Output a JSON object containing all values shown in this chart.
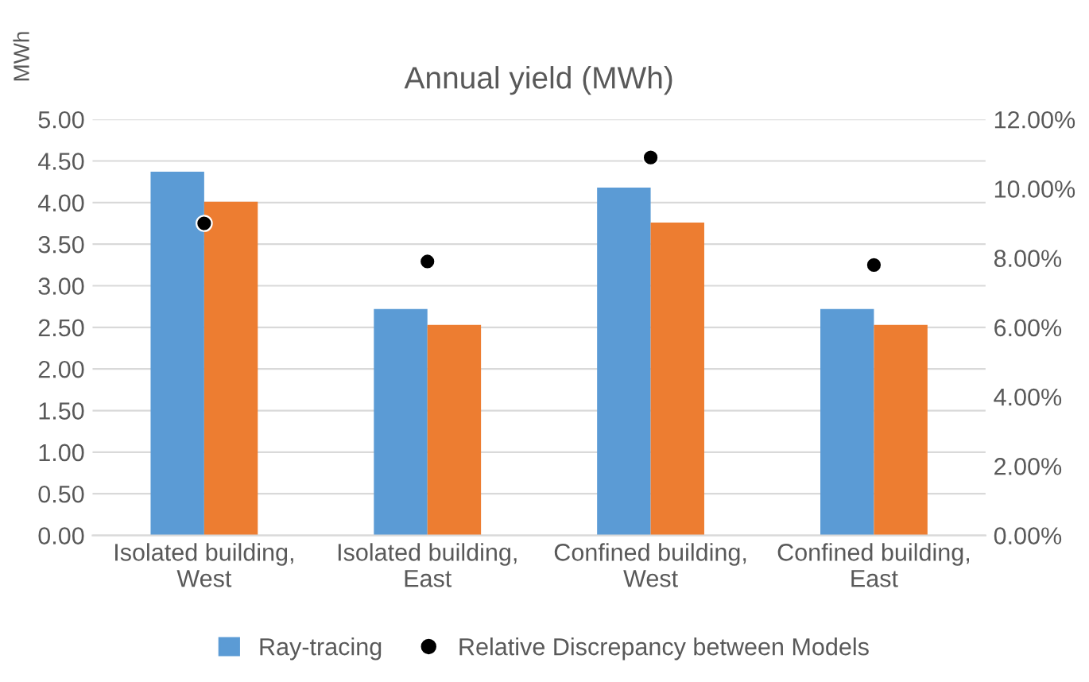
{
  "chart_data": {
    "type": "bar",
    "title": "Annual yield (MWh)",
    "ylabel": "MWh",
    "categories": [
      "Isolated building,\nWest",
      "Isolated building,\nEast",
      "Confined building,\nWest",
      "Confined building,\nEast"
    ],
    "series": [
      {
        "name": "Ray-tracing",
        "color": "#5b9bd5",
        "values": [
          4.37,
          2.72,
          4.18,
          2.72
        ]
      },
      {
        "color": "#ed7d31",
        "values": [
          4.01,
          2.53,
          3.76,
          2.53
        ]
      },
      {
        "name": "Relative Discrepancy between Models",
        "type": "scatter",
        "axis": "y2",
        "color": "#000000",
        "marker": "circle",
        "values": [
          9.0,
          7.9,
          10.9,
          7.8
        ]
      }
    ],
    "ylim": [
      0,
      5
    ],
    "yticks": [
      {
        "value": 0,
        "label": "0.00"
      },
      {
        "value": 0.5,
        "label": "0.50"
      },
      {
        "value": 1,
        "label": "1.00"
      },
      {
        "value": 1.5,
        "label": "1.50"
      },
      {
        "value": 2,
        "label": "2.00"
      },
      {
        "value": 2.5,
        "label": "2.50"
      },
      {
        "value": 3,
        "label": "3.00"
      },
      {
        "value": 3.5,
        "label": "3.50"
      },
      {
        "value": 4,
        "label": "4.00"
      },
      {
        "value": 4.5,
        "label": "4.50"
      },
      {
        "value": 5,
        "label": "5.00"
      }
    ],
    "y2lim": [
      0,
      12
    ],
    "y2ticks": [
      {
        "value": 0,
        "label": "0.00%"
      },
      {
        "value": 2,
        "label": "2.00%"
      },
      {
        "value": 4,
        "label": "4.00%"
      },
      {
        "value": 6,
        "label": "6.00%"
      },
      {
        "value": 8,
        "label": "8.00%"
      },
      {
        "value": 10,
        "label": "10.00%"
      },
      {
        "value": 12,
        "label": "12.00%"
      }
    ],
    "grid": "y",
    "legend": "bottom"
  }
}
